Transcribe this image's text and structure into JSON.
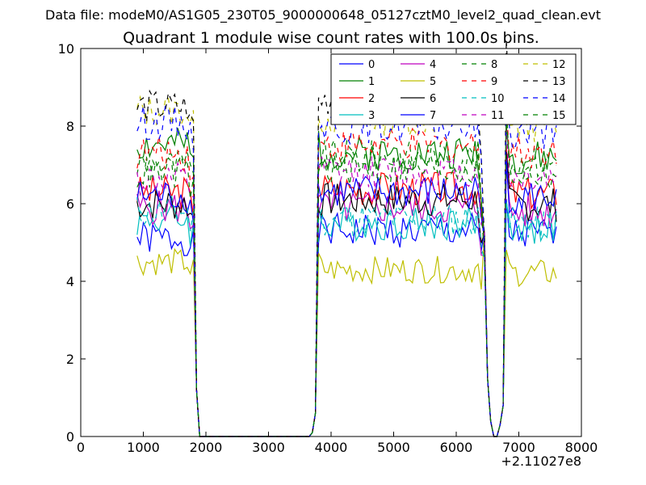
{
  "figure": {
    "suptitle": "Data file: modeM0/AS1G05_230T05_9000000648_05127cztM0_level2_quad_clean.evt",
    "offset_label": "+2.11027e8"
  },
  "chart_data": {
    "type": "line",
    "title": "Quadrant 1 module wise count rates with 100.0s bins.",
    "xlabel": "",
    "ylabel": "",
    "xlim": [
      0,
      8000
    ],
    "ylim": [
      0,
      10
    ],
    "x_offset": 211027000,
    "xticks": [
      0,
      1000,
      2000,
      3000,
      4000,
      5000,
      6000,
      7000,
      8000
    ],
    "yticks": [
      0,
      2,
      4,
      6,
      8,
      10
    ],
    "x_tick_labels": [
      "0",
      "1000",
      "2000",
      "3000",
      "4000",
      "5000",
      "6000",
      "7000",
      "8000"
    ],
    "y_tick_labels": [
      "0",
      "2",
      "4",
      "6",
      "8",
      "10"
    ],
    "grid": false,
    "legend": "top-right",
    "series": [
      {
        "name": "0",
        "color": "#0000ff",
        "dash": "solid",
        "level": 5.1,
        "c": 5.3,
        "seed": 1
      },
      {
        "name": "1",
        "color": "#008000",
        "dash": "solid",
        "level": 7.5,
        "c": 7.3,
        "seed": 2
      },
      {
        "name": "2",
        "color": "#ff0000",
        "dash": "solid",
        "level": 6.3,
        "c": 6.4,
        "seed": 3
      },
      {
        "name": "3",
        "color": "#00bfbf",
        "dash": "solid",
        "level": 5.6,
        "c": 5.5,
        "seed": 4
      },
      {
        "name": "4",
        "color": "#bf00bf",
        "dash": "solid",
        "level": 5.9,
        "c": 5.9,
        "seed": 5
      },
      {
        "name": "5",
        "color": "#bfbf00",
        "dash": "solid",
        "level": 4.5,
        "c": 4.3,
        "seed": 6
      },
      {
        "name": "6",
        "color": "#000000",
        "dash": "solid",
        "level": 6.0,
        "c": 6.1,
        "seed": 7
      },
      {
        "name": "7",
        "color": "#0000ff",
        "dash": "solid",
        "level": 6.2,
        "c": 6.3,
        "seed": 8
      },
      {
        "name": "8",
        "color": "#008000",
        "dash": "dashed",
        "level": 7.0,
        "c": 7.2,
        "seed": 9
      },
      {
        "name": "9",
        "color": "#ff0000",
        "dash": "dashed",
        "level": 7.3,
        "c": 7.5,
        "seed": 10
      },
      {
        "name": "10",
        "color": "#00bfbf",
        "dash": "dashed",
        "level": 5.8,
        "c": 5.6,
        "seed": 11
      },
      {
        "name": "11",
        "color": "#bf00bf",
        "dash": "dashed",
        "level": 6.6,
        "c": 6.8,
        "seed": 12
      },
      {
        "name": "12",
        "color": "#bfbf00",
        "dash": "dashed",
        "level": 8.4,
        "c": 8.2,
        "seed": 13
      },
      {
        "name": "13",
        "color": "#000000",
        "dash": "dashed",
        "level": 8.5,
        "c": 8.7,
        "seed": 14
      },
      {
        "name": "14",
        "color": "#0000ff",
        "dash": "dashed",
        "level": 8.1,
        "c": 8.0,
        "seed": 15
      },
      {
        "name": "15",
        "color": "#008000",
        "dash": "dashed",
        "level": 6.8,
        "c": 6.9,
        "seed": 16
      }
    ]
  }
}
